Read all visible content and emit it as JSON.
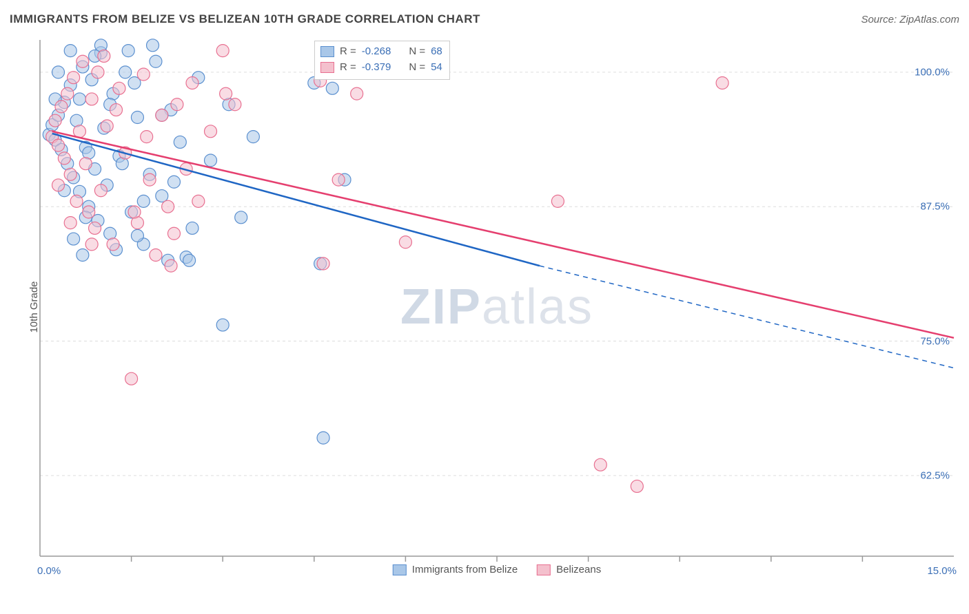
{
  "title": "IMMIGRANTS FROM BELIZE VS BELIZEAN 10TH GRADE CORRELATION CHART",
  "source_label": "Source: ZipAtlas.com",
  "y_axis_label": "10th Grade",
  "watermark": {
    "bold": "ZIP",
    "light": "atlas"
  },
  "chart": {
    "type": "scatter",
    "xlim": [
      0,
      15
    ],
    "ylim": [
      55,
      103
    ],
    "x_ticks_minor": [
      1.5,
      3.0,
      4.5,
      6.0,
      7.5,
      9.0,
      10.5,
      12.0,
      13.5
    ],
    "x_tick_labels": [
      {
        "v": 0,
        "label": "0.0%"
      },
      {
        "v": 15,
        "label": "15.0%"
      }
    ],
    "y_grid": [
      62.5,
      75.0,
      87.5,
      100.0
    ],
    "y_tick_labels": [
      {
        "v": 62.5,
        "label": "62.5%"
      },
      {
        "v": 75.0,
        "label": "75.0%"
      },
      {
        "v": 87.5,
        "label": "87.5%"
      },
      {
        "v": 100.0,
        "label": "100.0%"
      }
    ],
    "background_color": "#ffffff",
    "axis_color": "#999999",
    "grid_color": "#dddddd",
    "grid_dash": "4,4",
    "marker_radius": 9,
    "marker_opacity": 0.55,
    "line_width": 2.5,
    "series": [
      {
        "name": "Immigrants from Belize",
        "label": "Immigrants from Belize",
        "fill": "#a9c7e8",
        "stroke": "#5a8fcf",
        "line_color": "#1f66c4",
        "R": "-0.268",
        "N": "68",
        "regression": {
          "x1": 0.2,
          "y1": 94.3,
          "x2": 8.2,
          "y2": 82.0,
          "x2_dash": 15.0,
          "y2_dash": 72.5
        },
        "points": [
          [
            0.15,
            94.2
          ],
          [
            0.2,
            95.1
          ],
          [
            0.25,
            93.7
          ],
          [
            0.3,
            96.0
          ],
          [
            0.35,
            92.8
          ],
          [
            0.4,
            97.2
          ],
          [
            0.45,
            91.5
          ],
          [
            0.5,
            98.8
          ],
          [
            0.55,
            90.2
          ],
          [
            0.6,
            95.5
          ],
          [
            0.65,
            88.9
          ],
          [
            0.7,
            100.5
          ],
          [
            0.75,
            93.0
          ],
          [
            0.8,
            87.5
          ],
          [
            0.85,
            99.3
          ],
          [
            0.9,
            91.0
          ],
          [
            0.95,
            86.2
          ],
          [
            1.0,
            101.8
          ],
          [
            1.05,
            94.8
          ],
          [
            1.1,
            89.5
          ],
          [
            1.15,
            85.0
          ],
          [
            1.2,
            98.0
          ],
          [
            1.3,
            92.2
          ],
          [
            1.4,
            100.0
          ],
          [
            1.5,
            87.0
          ],
          [
            1.6,
            95.8
          ],
          [
            1.7,
            84.0
          ],
          [
            1.8,
            90.5
          ],
          [
            1.9,
            101.0
          ],
          [
            2.0,
            88.5
          ],
          [
            2.1,
            82.5
          ],
          [
            2.15,
            96.5
          ],
          [
            2.3,
            93.5
          ],
          [
            2.4,
            82.8
          ],
          [
            2.5,
            85.5
          ],
          [
            2.6,
            99.5
          ],
          [
            2.8,
            91.8
          ],
          [
            3.0,
            76.5
          ],
          [
            3.1,
            97.0
          ],
          [
            3.3,
            86.5
          ],
          [
            3.5,
            94.0
          ],
          [
            4.5,
            99.0
          ],
          [
            4.6,
            82.2
          ],
          [
            4.65,
            66.0
          ],
          [
            4.8,
            98.5
          ],
          [
            5.0,
            90.0
          ],
          [
            1.25,
            83.5
          ],
          [
            0.55,
            84.5
          ],
          [
            0.7,
            83.0
          ],
          [
            1.0,
            102.5
          ],
          [
            1.45,
            102.0
          ],
          [
            1.85,
            102.5
          ],
          [
            0.4,
            89.0
          ],
          [
            0.65,
            97.5
          ],
          [
            2.2,
            89.8
          ],
          [
            0.3,
            100.0
          ],
          [
            0.8,
            92.5
          ],
          [
            1.6,
            84.8
          ],
          [
            2.45,
            82.5
          ],
          [
            0.5,
            102.0
          ],
          [
            1.15,
            97.0
          ],
          [
            0.9,
            101.5
          ],
          [
            1.7,
            88.0
          ],
          [
            1.35,
            91.5
          ],
          [
            0.75,
            86.5
          ],
          [
            2.0,
            96.0
          ],
          [
            1.55,
            99.0
          ],
          [
            0.25,
            97.5
          ]
        ]
      },
      {
        "name": "Belizeans",
        "label": "Belizeans",
        "fill": "#f4c0cd",
        "stroke": "#e86f90",
        "line_color": "#e53f6f",
        "R": "-0.379",
        "N": "54",
        "regression": {
          "x1": 0.2,
          "y1": 94.5,
          "x2": 15.0,
          "y2": 75.3
        },
        "points": [
          [
            0.2,
            94.0
          ],
          [
            0.25,
            95.5
          ],
          [
            0.3,
            93.2
          ],
          [
            0.35,
            96.8
          ],
          [
            0.4,
            92.0
          ],
          [
            0.45,
            98.0
          ],
          [
            0.5,
            90.5
          ],
          [
            0.55,
            99.5
          ],
          [
            0.6,
            88.0
          ],
          [
            0.65,
            94.5
          ],
          [
            0.7,
            101.0
          ],
          [
            0.75,
            91.5
          ],
          [
            0.8,
            87.0
          ],
          [
            0.85,
            97.5
          ],
          [
            0.9,
            85.5
          ],
          [
            0.95,
            100.0
          ],
          [
            1.0,
            89.0
          ],
          [
            1.1,
            95.0
          ],
          [
            1.2,
            84.0
          ],
          [
            1.3,
            98.5
          ],
          [
            1.4,
            92.5
          ],
          [
            1.5,
            71.5
          ],
          [
            1.6,
            86.0
          ],
          [
            1.7,
            99.8
          ],
          [
            1.8,
            90.0
          ],
          [
            1.9,
            83.0
          ],
          [
            2.0,
            96.0
          ],
          [
            2.1,
            87.5
          ],
          [
            2.2,
            85.0
          ],
          [
            2.25,
            97.0
          ],
          [
            2.4,
            91.0
          ],
          [
            2.5,
            99.0
          ],
          [
            2.6,
            88.0
          ],
          [
            2.8,
            94.5
          ],
          [
            3.0,
            102.0
          ],
          [
            3.05,
            98.0
          ],
          [
            3.2,
            97.0
          ],
          [
            4.6,
            99.2
          ],
          [
            4.65,
            82.2
          ],
          [
            4.9,
            90.0
          ],
          [
            5.2,
            98.0
          ],
          [
            6.0,
            84.2
          ],
          [
            8.5,
            88.0
          ],
          [
            9.2,
            63.5
          ],
          [
            9.8,
            61.5
          ],
          [
            11.2,
            99.0
          ],
          [
            1.05,
            101.5
          ],
          [
            0.5,
            86.0
          ],
          [
            1.25,
            96.5
          ],
          [
            0.3,
            89.5
          ],
          [
            1.75,
            94.0
          ],
          [
            2.15,
            82.0
          ],
          [
            0.85,
            84.0
          ],
          [
            1.55,
            87.0
          ]
        ]
      }
    ]
  },
  "stats_legend": {
    "r_label": "R =",
    "n_label": "N ="
  },
  "series_legend_labels": [
    "Immigrants from Belize",
    "Belizeans"
  ]
}
